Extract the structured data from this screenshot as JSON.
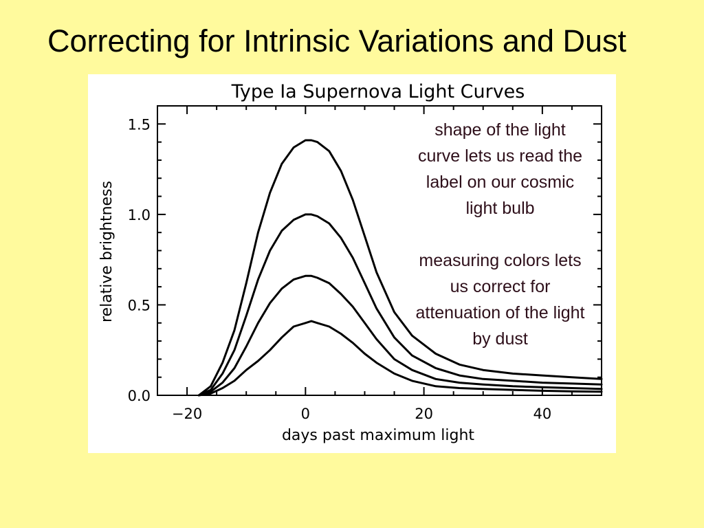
{
  "slide": {
    "title": "Correcting for Intrinsic Variations and Dust"
  },
  "annotations": {
    "shape_note": "shape of the light curve lets us read the label on our cosmic light bulb",
    "color_note": "measuring colors lets us correct for attenuation of the light by dust"
  },
  "colors": {
    "background": "#FFFA9D",
    "panel": "#FFFFFF",
    "ink": "#000000",
    "annotation_text": "#2E0F1A"
  },
  "chart_data": {
    "type": "line",
    "title": "Type Ia Supernova Light Curves",
    "xlabel": "days past maximum light",
    "ylabel": "relative brightness",
    "xlim": [
      -25,
      50
    ],
    "ylim": [
      0,
      1.6
    ],
    "xticks": [
      -20,
      0,
      20,
      40
    ],
    "xtick_labels": [
      "−20",
      "0",
      "20",
      "40"
    ],
    "yticks": [
      0.0,
      0.5,
      1.0,
      1.5
    ],
    "ytick_labels": [
      "0.0",
      "0.5",
      "1.0",
      "1.5"
    ],
    "grid": false,
    "legend": false,
    "x": [
      -18,
      -16,
      -14,
      -12,
      -10,
      -8,
      -6,
      -4,
      -2,
      0,
      1,
      2,
      4,
      6,
      8,
      10,
      12,
      15,
      18,
      22,
      26,
      30,
      35,
      40,
      45,
      50
    ],
    "series": [
      {
        "values": [
          0.0,
          0.05,
          0.18,
          0.36,
          0.62,
          0.9,
          1.12,
          1.28,
          1.37,
          1.41,
          1.41,
          1.4,
          1.35,
          1.24,
          1.08,
          0.88,
          0.68,
          0.46,
          0.33,
          0.23,
          0.17,
          0.14,
          0.12,
          0.11,
          0.1,
          0.09
        ]
      },
      {
        "values": [
          0.0,
          0.03,
          0.12,
          0.25,
          0.44,
          0.64,
          0.8,
          0.91,
          0.97,
          1.0,
          1.0,
          0.99,
          0.95,
          0.87,
          0.76,
          0.62,
          0.48,
          0.32,
          0.22,
          0.15,
          0.11,
          0.09,
          0.08,
          0.07,
          0.065,
          0.06
        ]
      },
      {
        "values": [
          0.0,
          0.02,
          0.07,
          0.15,
          0.27,
          0.4,
          0.51,
          0.59,
          0.64,
          0.66,
          0.66,
          0.65,
          0.62,
          0.56,
          0.49,
          0.4,
          0.31,
          0.2,
          0.14,
          0.09,
          0.07,
          0.06,
          0.05,
          0.045,
          0.04,
          0.035
        ]
      },
      {
        "values": [
          0.0,
          0.01,
          0.04,
          0.08,
          0.14,
          0.19,
          0.25,
          0.32,
          0.38,
          0.4,
          0.41,
          0.4,
          0.38,
          0.34,
          0.29,
          0.23,
          0.18,
          0.12,
          0.08,
          0.05,
          0.04,
          0.035,
          0.03,
          0.025,
          0.022,
          0.02
        ]
      }
    ]
  }
}
